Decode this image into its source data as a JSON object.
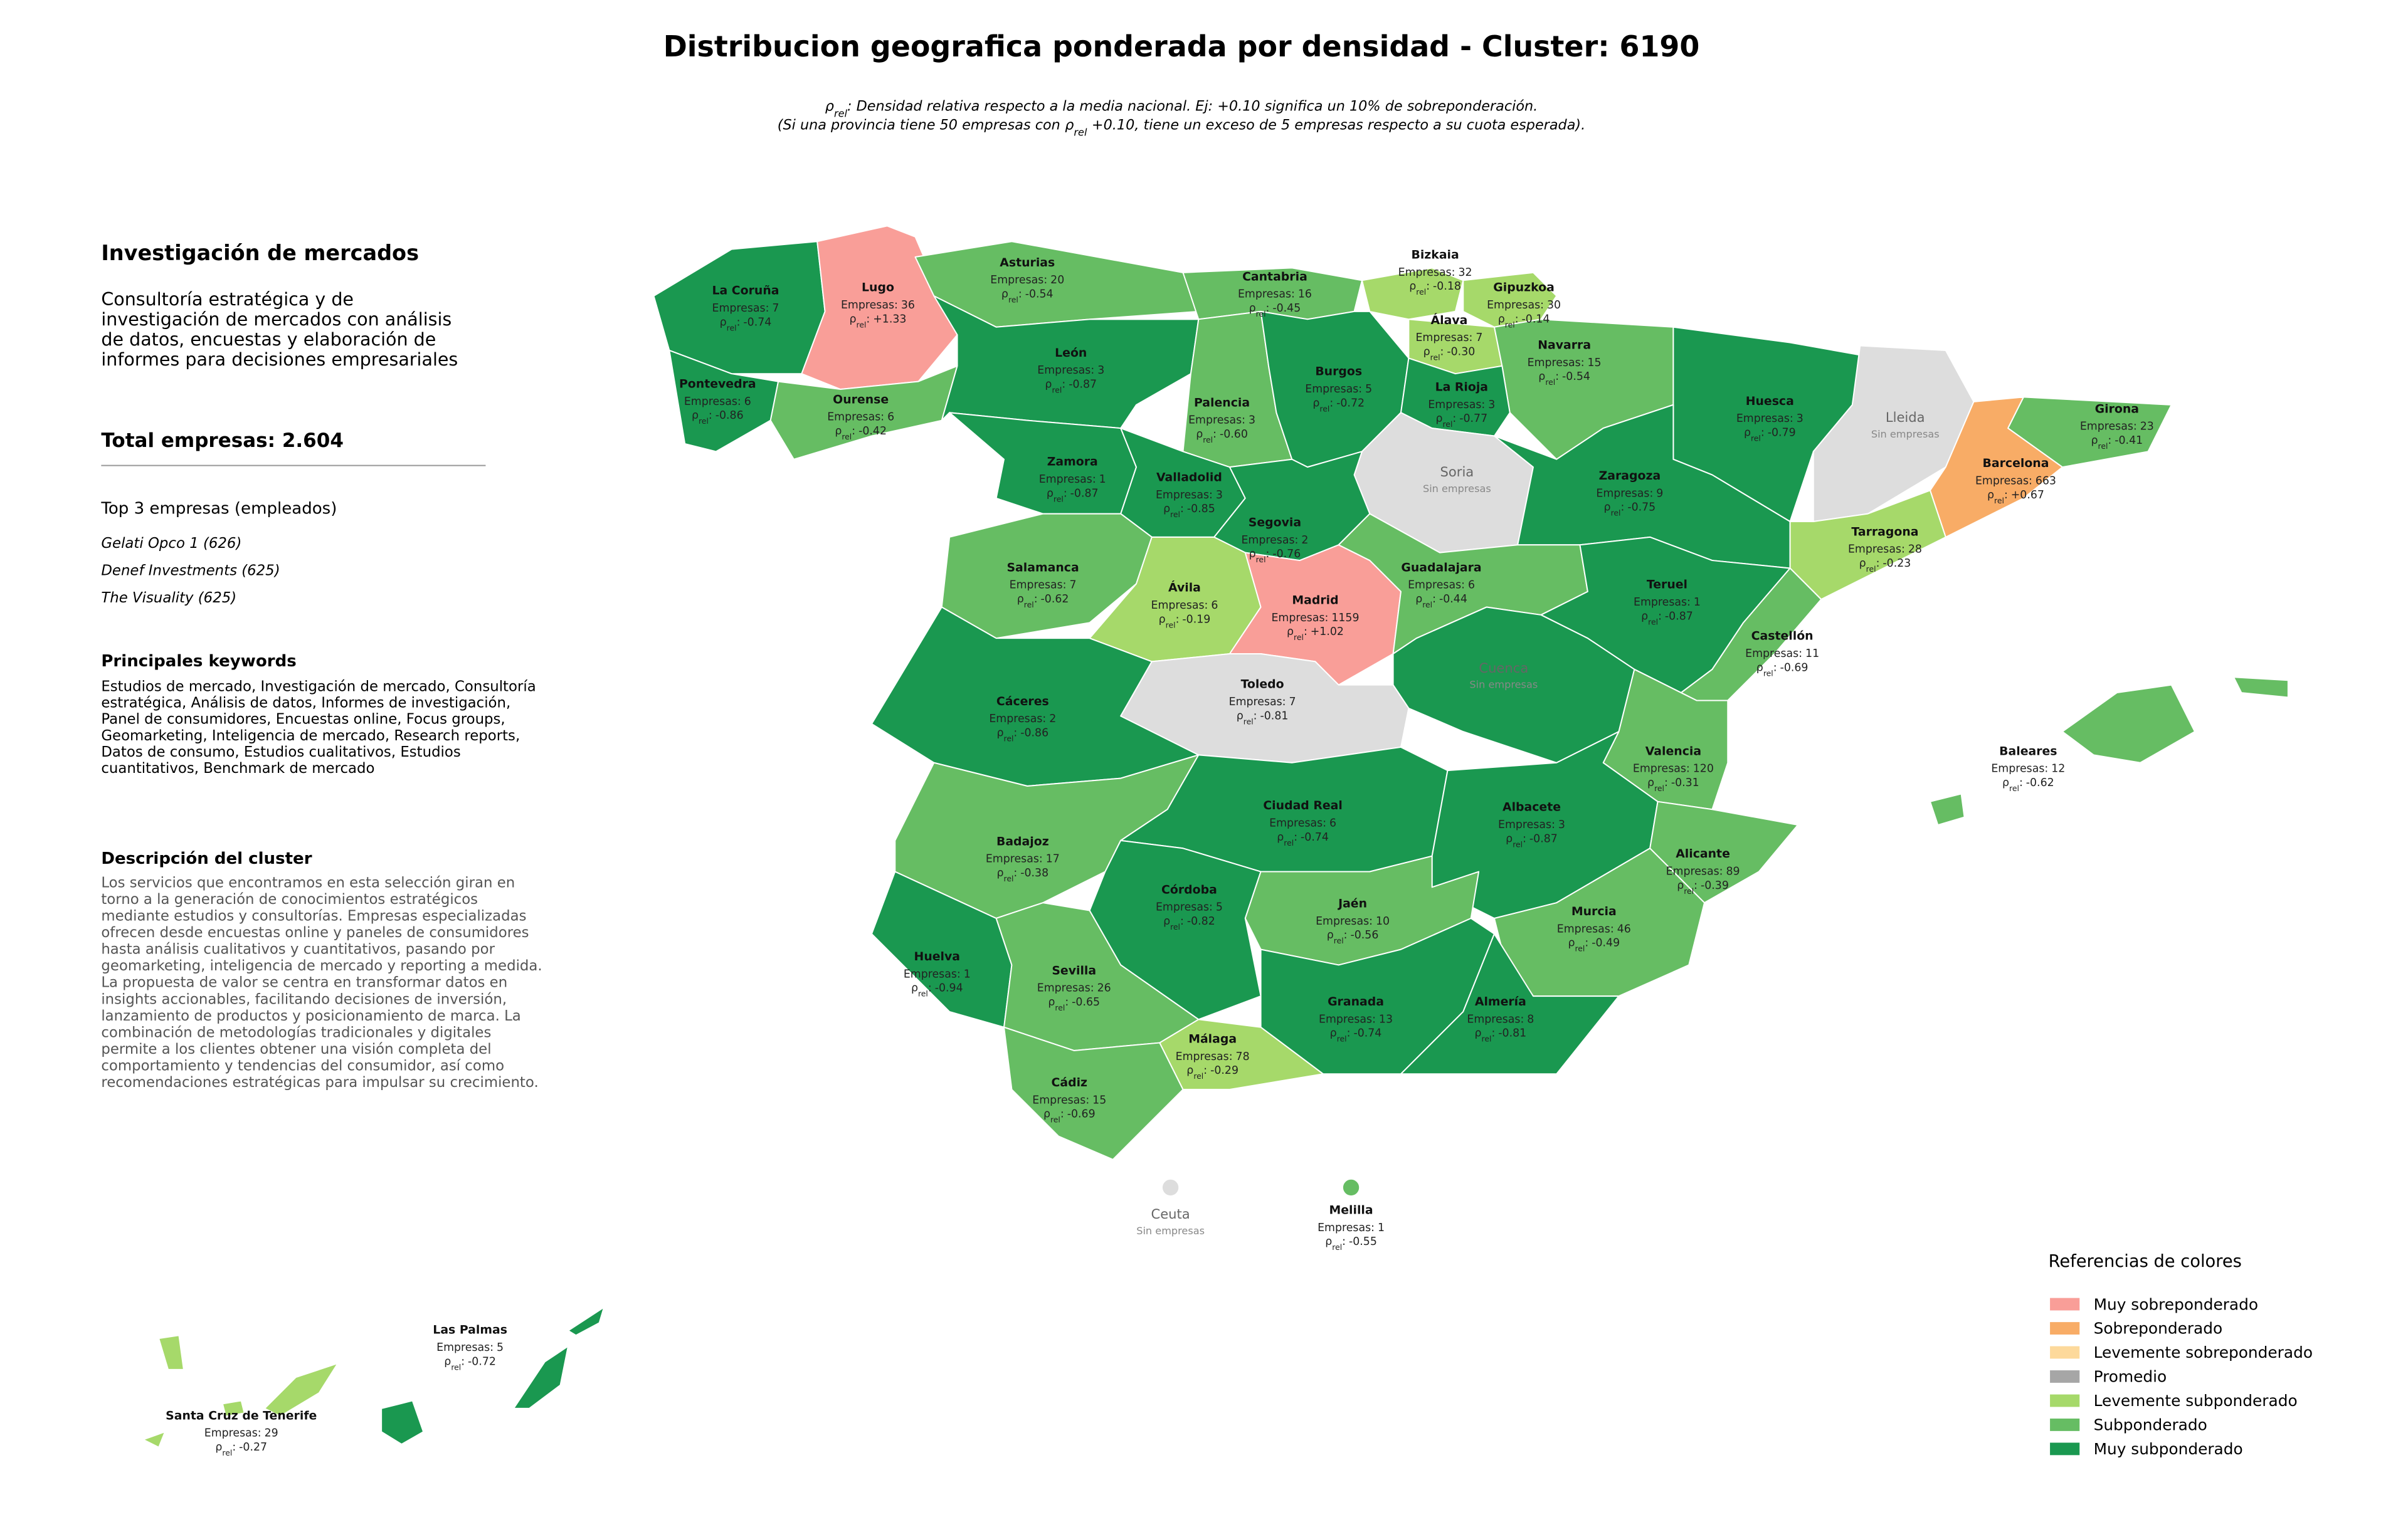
{
  "title": "Distribucion geografica ponderada por densidad - Cluster: 6190",
  "rho_symbol": "ρ",
  "rho_subscript": "rel",
  "rho_sep": ":",
  "empresas_label": "Empresas:",
  "subtitle_line1": ": Densidad relativa respecto a la media nacional. Ej: +0.10 significa un 10% de sobreponderación.",
  "subtitle_line2_start": "(Si una provincia tiene 50 empresas con",
  "subtitle_line2_end": "+0.10, tiene un exceso de 5 empresas respecto a su cuota esperada).",
  "panel": {
    "heading": "Investigación de mercados",
    "summary_lines": [
      "Consultoría estratégica y de",
      "investigación de mercados con análisis",
      "de datos, encuestas y elaboración de",
      "informes para decisiones empresariales"
    ],
    "total": "Total empresas: 2.604",
    "top_heading": "Top 3 empresas (empleados)",
    "top_companies": [
      "Gelati Opco 1 (626)",
      "Denef Investments (625)",
      "The Visuality (625)"
    ],
    "keywords_heading": "Principales keywords",
    "keywords_lines": [
      "Estudios de mercado, Investigación de mercado, Consultoría",
      "estratégica, Análisis de datos, Informes de investigación,",
      "Panel de consumidores, Encuestas online, Focus groups,",
      "Geomarketing, Inteligencia de mercado, Research reports,",
      "Datos de consumo, Estudios cualitativos, Estudios",
      "cuantitativos, Benchmark de mercado"
    ],
    "description_heading": "Descripción del cluster",
    "description_lines": [
      "Los servicios que encontramos en esta selección giran en",
      "torno a la generación de conocimientos estratégicos",
      "mediante estudios y consultorías. Empresas especializadas",
      "ofrecen desde encuestas online y paneles de consumidores",
      "hasta análisis cualitativos y cuantitativos, pasando por",
      "geomarketing, inteligencia de mercado y reporting a medida.",
      "La propuesta de valor se centra en transformar datos en",
      "insights accionables, facilitando decisiones de inversión,",
      "lanzamiento de productos y posicionamiento de marca. La",
      "combinación de metodologías tradicionales y digitales",
      "permite a los clientes obtener una visión completa del",
      "comportamiento y tendencias del consumidor, así como",
      "recomendaciones estratégicas para impulsar su crecimiento."
    ]
  },
  "legend": {
    "title": "Referencias de colores",
    "items": [
      {
        "name": "Muy sobreponderado",
        "color": "#f99e98"
      },
      {
        "name": "Sobreponderado",
        "color": "#f8ac66"
      },
      {
        "name": "Levemente sobreponderado",
        "color": "#fdd99b"
      },
      {
        "name": "Promedio",
        "color": "#a6a6a6"
      },
      {
        "name": "Levemente subponderado",
        "color": "#a6d96a"
      },
      {
        "name": "Subponderado",
        "color": "#66bd63"
      },
      {
        "name": "Muy subponderado",
        "color": "#1a9850"
      }
    ]
  },
  "provinces": [
    {
      "name": "La Coruña",
      "empresas": 7,
      "rho": -0.74,
      "rho_label": "-0.74",
      "color": "#1a9850"
    },
    {
      "name": "Lugo",
      "empresas": 36,
      "rho": 1.33,
      "rho_label": "+1.33",
      "color": "#f99e98"
    },
    {
      "name": "Asturias",
      "empresas": 20,
      "rho": -0.54,
      "rho_label": "-0.54",
      "color": "#66bd63"
    },
    {
      "name": "Cantabria",
      "empresas": 16,
      "rho": -0.45,
      "rho_label": "-0.45",
      "color": "#66bd63"
    },
    {
      "name": "Bizkaia",
      "empresas": 32,
      "rho": -0.18,
      "rho_label": "-0.18",
      "color": "#a6d96a"
    },
    {
      "name": "Gipuzkoa",
      "empresas": 30,
      "rho": -0.14,
      "rho_label": "-0.14",
      "color": "#a6d96a"
    },
    {
      "name": "Álava",
      "empresas": 7,
      "rho": -0.3,
      "rho_label": "-0.30",
      "color": "#a6d96a"
    },
    {
      "name": "Navarra",
      "empresas": 15,
      "rho": -0.54,
      "rho_label": "-0.54",
      "color": "#66bd63"
    },
    {
      "name": "Pontevedra",
      "empresas": 6,
      "rho": -0.86,
      "rho_label": "-0.86",
      "color": "#1a9850"
    },
    {
      "name": "Ourense",
      "empresas": 6,
      "rho": -0.42,
      "rho_label": "-0.42",
      "color": "#66bd63"
    },
    {
      "name": "León",
      "empresas": 3,
      "rho": -0.87,
      "rho_label": "-0.87",
      "color": "#1a9850"
    },
    {
      "name": "Palencia",
      "empresas": 3,
      "rho": -0.6,
      "rho_label": "-0.60",
      "color": "#66bd63"
    },
    {
      "name": "Burgos",
      "empresas": 5,
      "rho": -0.72,
      "rho_label": "-0.72",
      "color": "#1a9850"
    },
    {
      "name": "La Rioja",
      "empresas": 3,
      "rho": -0.77,
      "rho_label": "-0.77",
      "color": "#1a9850"
    },
    {
      "name": "Huesca",
      "empresas": 3,
      "rho": -0.79,
      "rho_label": "-0.79",
      "color": "#1a9850"
    },
    {
      "name": "Lleida",
      "status": "Sin empresas",
      "color": "#dddddd"
    },
    {
      "name": "Girona",
      "empresas": 23,
      "rho": -0.41,
      "rho_label": "-0.41",
      "color": "#66bd63"
    },
    {
      "name": "Barcelona",
      "empresas": 663,
      "rho": 0.67,
      "rho_label": "+0.67",
      "color": "#f8ac66"
    },
    {
      "name": "Zamora",
      "empresas": 1,
      "rho": -0.87,
      "rho_label": "-0.87",
      "color": "#1a9850"
    },
    {
      "name": "Valladolid",
      "empresas": 3,
      "rho": -0.85,
      "rho_label": "-0.85",
      "color": "#1a9850"
    },
    {
      "name": "Soria",
      "status": "Sin empresas",
      "color": "#dddddd"
    },
    {
      "name": "Zaragoza",
      "empresas": 9,
      "rho": -0.75,
      "rho_label": "-0.75",
      "color": "#1a9850"
    },
    {
      "name": "Tarragona",
      "empresas": 28,
      "rho": -0.23,
      "rho_label": "-0.23",
      "color": "#a6d96a"
    },
    {
      "name": "Segovia",
      "empresas": 2,
      "rho": -0.76,
      "rho_label": "-0.76",
      "color": "#1a9850"
    },
    {
      "name": "Salamanca",
      "empresas": 7,
      "rho": -0.62,
      "rho_label": "-0.62",
      "color": "#66bd63"
    },
    {
      "name": "Ávila",
      "empresas": 6,
      "rho": -0.19,
      "rho_label": "-0.19",
      "color": "#a6d96a"
    },
    {
      "name": "Madrid",
      "empresas": 1159,
      "rho": 1.02,
      "rho_label": "+1.02",
      "color": "#f99e98"
    },
    {
      "name": "Guadalajara",
      "empresas": 6,
      "rho": -0.44,
      "rho_label": "-0.44",
      "color": "#66bd63"
    },
    {
      "name": "Teruel",
      "empresas": 1,
      "rho": -0.87,
      "rho_label": "-0.87",
      "color": "#1a9850"
    },
    {
      "name": "Castellón",
      "empresas": 11,
      "rho": -0.69,
      "rho_label": "-0.69",
      "color": "#66bd63"
    },
    {
      "name": "Cáceres",
      "empresas": 2,
      "rho": -0.86,
      "rho_label": "-0.86",
      "color": "#1a9850"
    },
    {
      "name": "Toledo",
      "empresas": 7,
      "rho": -0.81,
      "rho_label": "-0.81",
      "color": "#1a9850"
    },
    {
      "name": "Cuenca",
      "status": "Sin empresas",
      "color": "#dddddd"
    },
    {
      "name": "Valencia",
      "empresas": 120,
      "rho": -0.31,
      "rho_label": "-0.31",
      "color": "#66bd63"
    },
    {
      "name": "Baleares",
      "empresas": 12,
      "rho": -0.62,
      "rho_label": "-0.62",
      "color": "#66bd63"
    },
    {
      "name": "Badajoz",
      "empresas": 17,
      "rho": -0.38,
      "rho_label": "-0.38",
      "color": "#66bd63"
    },
    {
      "name": "Ciudad Real",
      "empresas": 6,
      "rho": -0.74,
      "rho_label": "-0.74",
      "color": "#1a9850"
    },
    {
      "name": "Albacete",
      "empresas": 3,
      "rho": -0.87,
      "rho_label": "-0.87",
      "color": "#1a9850"
    },
    {
      "name": "Alicante",
      "empresas": 89,
      "rho": -0.39,
      "rho_label": "-0.39",
      "color": "#66bd63"
    },
    {
      "name": "Córdoba",
      "empresas": 5,
      "rho": -0.82,
      "rho_label": "-0.82",
      "color": "#1a9850"
    },
    {
      "name": "Jaén",
      "empresas": 10,
      "rho": -0.56,
      "rho_label": "-0.56",
      "color": "#66bd63"
    },
    {
      "name": "Murcia",
      "empresas": 46,
      "rho": -0.49,
      "rho_label": "-0.49",
      "color": "#66bd63"
    },
    {
      "name": "Huelva",
      "empresas": 1,
      "rho": -0.94,
      "rho_label": "-0.94",
      "color": "#1a9850"
    },
    {
      "name": "Sevilla",
      "empresas": 26,
      "rho": -0.65,
      "rho_label": "-0.65",
      "color": "#66bd63"
    },
    {
      "name": "Granada",
      "empresas": 13,
      "rho": -0.74,
      "rho_label": "-0.74",
      "color": "#1a9850"
    },
    {
      "name": "Almería",
      "empresas": 8,
      "rho": -0.81,
      "rho_label": "-0.81",
      "color": "#1a9850"
    },
    {
      "name": "Málaga",
      "empresas": 78,
      "rho": -0.29,
      "rho_label": "-0.29",
      "color": "#a6d96a"
    },
    {
      "name": "Cádiz",
      "empresas": 15,
      "rho": -0.69,
      "rho_label": "-0.69",
      "color": "#66bd63"
    },
    {
      "name": "Ceuta",
      "status": "Sin empresas",
      "color": "#dddddd"
    },
    {
      "name": "Melilla",
      "empresas": 1,
      "rho": -0.55,
      "rho_label": "-0.55",
      "color": "#66bd63"
    },
    {
      "name": "Las Palmas",
      "empresas": 5,
      "rho": -0.72,
      "rho_label": "-0.72",
      "color": "#1a9850"
    },
    {
      "name": "Santa Cruz de Tenerife",
      "empresas": 29,
      "rho": -0.27,
      "rho_label": "-0.27",
      "color": "#a6d96a"
    }
  ]
}
